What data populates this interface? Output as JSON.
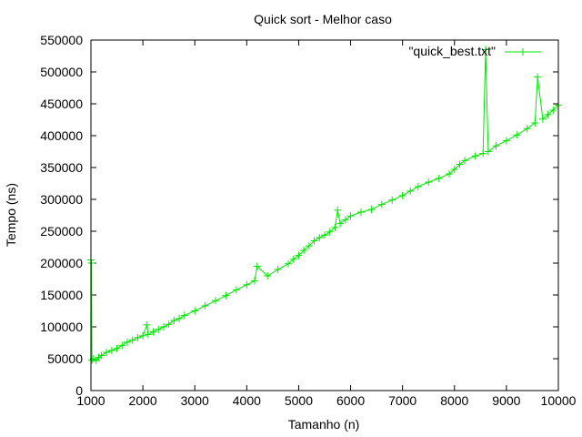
{
  "chart_data": {
    "type": "line",
    "title": "Quick sort - Melhor caso",
    "xlabel": "Tamanho (n)",
    "ylabel": "Tempo (ns)",
    "xlim": [
      1000,
      10000
    ],
    "ylim": [
      0,
      550000
    ],
    "xticks": [
      "1000",
      "2000",
      "3000",
      "4000",
      "5000",
      "6000",
      "7000",
      "8000",
      "9000",
      "10000"
    ],
    "yticks": [
      "0",
      "50000",
      "100000",
      "150000",
      "200000",
      "250000",
      "300000",
      "350000",
      "400000",
      "450000",
      "500000",
      "550000"
    ],
    "grid": false,
    "legend_position": "top-right",
    "series_color": "#00e600",
    "series": [
      {
        "name": "\"quick_best.txt\"",
        "x": [
          1000,
          1010,
          1020,
          1050,
          1100,
          1150,
          1200,
          1300,
          1400,
          1500,
          1600,
          1700,
          1800,
          1900,
          2000,
          2080,
          2100,
          2200,
          2300,
          2400,
          2500,
          2600,
          2700,
          2800,
          3000,
          3200,
          3400,
          3600,
          3800,
          4000,
          4150,
          4200,
          4400,
          4600,
          4800,
          4900,
          5000,
          5100,
          5200,
          5300,
          5400,
          5500,
          5600,
          5700,
          5750,
          5800,
          5900,
          6000,
          6200,
          6400,
          6600,
          6800,
          7000,
          7150,
          7300,
          7500,
          7700,
          7900,
          8000,
          8100,
          8200,
          8400,
          8550,
          8600,
          8650,
          8800,
          9000,
          9200,
          9400,
          9550,
          9600,
          9700,
          9800,
          9900,
          10000
        ],
        "y": [
          205000,
          200000,
          48000,
          50000,
          47000,
          52000,
          55000,
          60000,
          63000,
          66000,
          71000,
          76000,
          79000,
          83000,
          86000,
          103000,
          88000,
          92000,
          96000,
          100000,
          104000,
          110000,
          113000,
          118000,
          125000,
          133000,
          141000,
          149000,
          158000,
          166000,
          172000,
          195000,
          180000,
          190000,
          199000,
          206000,
          212000,
          220000,
          227000,
          235000,
          240000,
          244000,
          249000,
          256000,
          283000,
          262000,
          268000,
          274000,
          280000,
          284000,
          292000,
          299000,
          306000,
          313000,
          320000,
          327000,
          333000,
          340000,
          347000,
          355000,
          361000,
          368000,
          372000,
          535000,
          375000,
          384000,
          392000,
          401000,
          411000,
          420000,
          492000,
          426000,
          433000,
          440000,
          448000
        ]
      }
    ]
  }
}
